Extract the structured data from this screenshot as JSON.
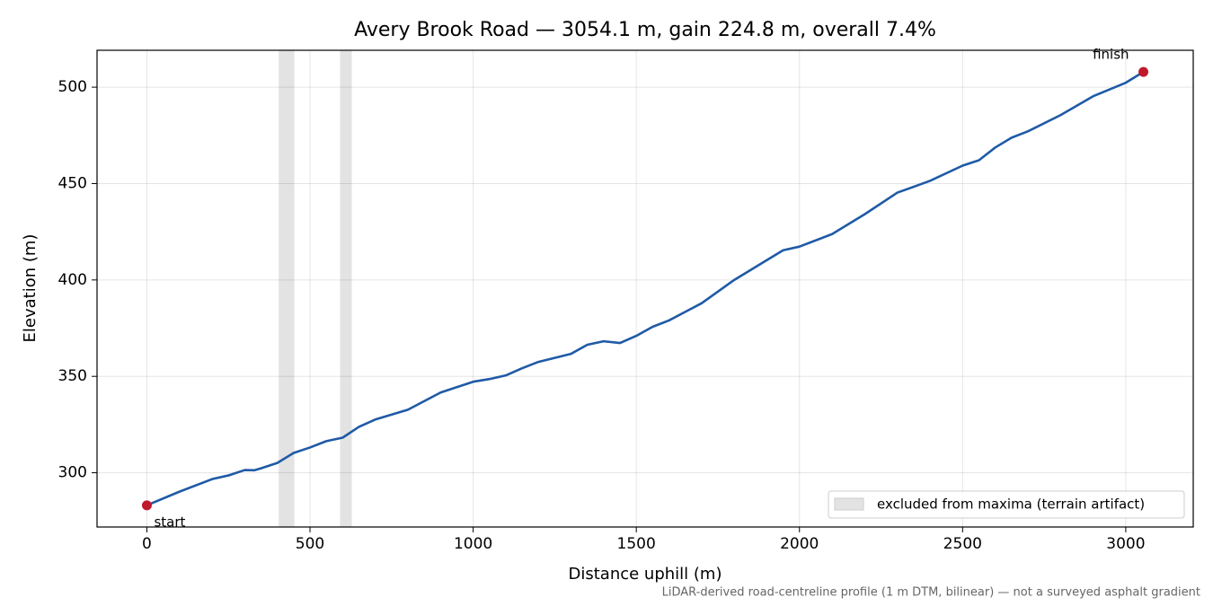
{
  "chart_data": {
    "type": "line",
    "title": "Avery Brook Road — 3054.1 m, gain 224.8 m, overall 7.4%",
    "x_label": "Distance uphill (m)",
    "y_label": "Elevation (m)",
    "footnote": "LiDAR-derived road-centreline profile (1 m DTM, bilinear) — not a surveyed asphalt gradient",
    "x": [
      0,
      100,
      200,
      250,
      300,
      330,
      350,
      400,
      450,
      500,
      550,
      600,
      650,
      700,
      800,
      900,
      1000,
      1050,
      1100,
      1150,
      1200,
      1300,
      1350,
      1400,
      1450,
      1500,
      1550,
      1600,
      1700,
      1800,
      1900,
      1950,
      2000,
      2100,
      2200,
      2300,
      2400,
      2500,
      2550,
      2600,
      2650,
      2700,
      2800,
      2900,
      3000,
      3054.1
    ],
    "series": [
      {
        "color": "#1f5aa6",
        "values": [
          283.1,
          290.2,
          296.7,
          298.6,
          301.4,
          301.3,
          302.3,
          305.1,
          310.3,
          313.1,
          316.4,
          318.2,
          323.8,
          327.6,
          332.7,
          341.6,
          347.2,
          348.6,
          350.5,
          354.2,
          357.5,
          361.7,
          366.4,
          368.2,
          367.3,
          371.0,
          375.7,
          379.0,
          387.9,
          400.0,
          410.3,
          415.4,
          417.3,
          423.8,
          434.1,
          445.3,
          451.4,
          459.3,
          462.1,
          468.7,
          473.8,
          477.1,
          485.5,
          495.3,
          502.3,
          507.9
        ]
      }
    ],
    "endpoints": {
      "color": "#c0192c",
      "labels": [
        "start",
        "finish"
      ]
    },
    "spans": {
      "label": "excluded from maxima (terrain artifact)",
      "color": "#e3e3e3",
      "ranges": [
        [
          404,
          452
        ],
        [
          592,
          628
        ]
      ]
    },
    "xlim": [
      -152.7,
      3206.8
    ],
    "ylim": [
      271.86,
      519.14
    ],
    "xticks": [
      0,
      500,
      1000,
      1500,
      2000,
      2500,
      3000
    ],
    "yticks": [
      300,
      350,
      400,
      450,
      500
    ],
    "grid": true,
    "legend": "lower right"
  }
}
